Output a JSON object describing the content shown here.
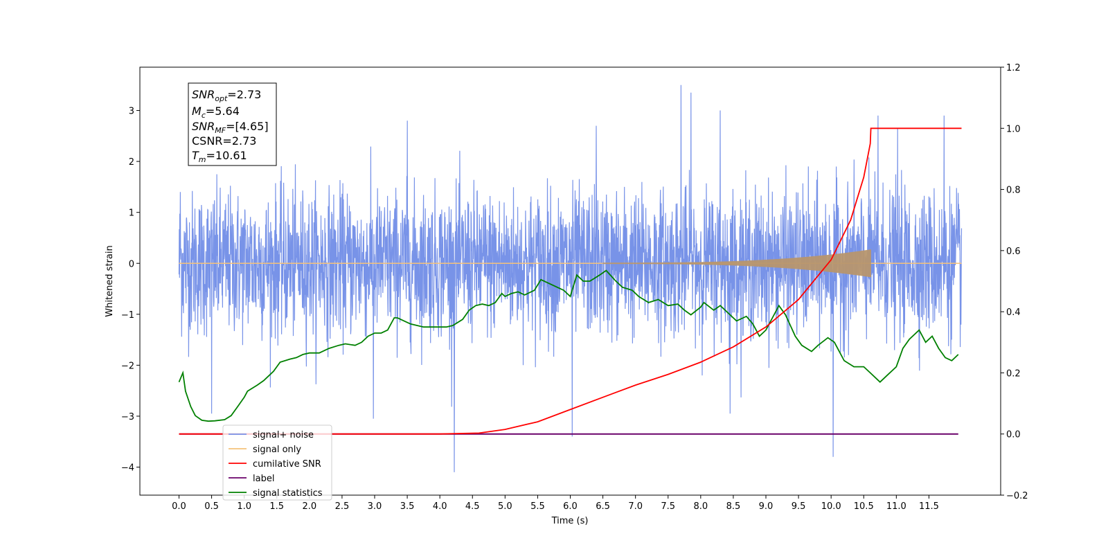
{
  "chart_data": {
    "type": "line",
    "xlabel": "Time (s)",
    "ylabel": "Whitened strain",
    "xlim": [
      -0.6,
      12.6
    ],
    "ylim": [
      -4.55,
      3.85
    ],
    "y2lim": [
      -0.2,
      1.2
    ],
    "x_ticks": [
      "0.0",
      "0.5",
      "1.0",
      "1.5",
      "2.0",
      "2.5",
      "3.0",
      "3.5",
      "4.0",
      "4.5",
      "5.0",
      "5.5",
      "6.0",
      "6.5",
      "7.0",
      "7.5",
      "8.0",
      "8.5",
      "9.0",
      "9.5",
      "10.0",
      "10.5",
      "11.0",
      "11.5"
    ],
    "y_ticks": [
      "−4",
      "−3",
      "−2",
      "−1",
      "0",
      "1",
      "2",
      "3"
    ],
    "y2_ticks": [
      "−0.2",
      "0.0",
      "0.2",
      "0.4",
      "0.6",
      "0.8",
      "1.0",
      "1.2"
    ],
    "legend_position": "lower-left",
    "annotation": {
      "snr_opt": "=2.73",
      "mc": "=5.64",
      "snr_mf": "=[4.65]",
      "csnr": "CSNR=2.73",
      "tm": "=10.61"
    },
    "series": [
      {
        "name": "signal+ noise",
        "axis": "left",
        "color": "#7893e8",
        "t_range": [
          0.0,
          12.0
        ],
        "amplitude_std": 0.7,
        "spikes": [
          [
            0.02,
            1.4
          ],
          [
            4.22,
            -4.1
          ],
          [
            6.03,
            -3.4
          ],
          [
            7.7,
            3.5
          ],
          [
            7.85,
            3.35
          ],
          [
            8.3,
            3.0
          ],
          [
            10.03,
            -3.8
          ],
          [
            10.72,
            2.9
          ],
          [
            11.73,
            2.9
          ],
          [
            11.02,
            2.65
          ],
          [
            3.5,
            2.8
          ],
          [
            6.4,
            2.7
          ],
          [
            2.98,
            -3.05
          ],
          [
            8.45,
            -2.95
          ],
          [
            0.5,
            -2.95
          ]
        ]
      },
      {
        "name": "signal only",
        "axis": "left",
        "color": "#f5c27a",
        "chirp_start": 6.5,
        "merger_time": 10.61,
        "peak_amplitude": 0.26
      },
      {
        "name": "cumilative SNR",
        "axis": "right",
        "color": "#ff0000",
        "x": [
          0.0,
          4.0,
          4.6,
          5.0,
          5.5,
          6.0,
          6.5,
          7.0,
          7.5,
          8.0,
          8.5,
          9.0,
          9.5,
          10.0,
          10.3,
          10.5,
          10.6,
          10.61,
          12.0
        ],
        "values": [
          0.0,
          0.0,
          0.003,
          0.015,
          0.04,
          0.08,
          0.12,
          0.16,
          0.195,
          0.235,
          0.285,
          0.35,
          0.44,
          0.57,
          0.7,
          0.84,
          0.95,
          1.0,
          1.0
        ]
      },
      {
        "name": "label",
        "axis": "right",
        "color": "#6a006a",
        "x": [
          0.0,
          11.95
        ],
        "values": [
          0.0,
          0.0
        ]
      },
      {
        "name": "signal statistics",
        "axis": "right",
        "color": "#008000",
        "x": [
          0.0,
          0.06,
          0.1,
          0.18,
          0.25,
          0.35,
          0.45,
          0.55,
          0.7,
          0.8,
          0.9,
          1.0,
          1.05,
          1.2,
          1.3,
          1.45,
          1.55,
          1.7,
          1.8,
          1.9,
          2.0,
          2.15,
          2.3,
          2.45,
          2.55,
          2.7,
          2.8,
          2.9,
          3.0,
          3.1,
          3.2,
          3.25,
          3.3,
          3.35,
          3.45,
          3.55,
          3.75,
          3.9,
          4.1,
          4.2,
          4.35,
          4.45,
          4.55,
          4.65,
          4.75,
          4.85,
          4.95,
          5.0,
          5.1,
          5.2,
          5.3,
          5.45,
          5.55,
          5.7,
          5.8,
          5.9,
          6.0,
          6.1,
          6.2,
          6.3,
          6.45,
          6.55,
          6.7,
          6.8,
          6.95,
          7.05,
          7.2,
          7.35,
          7.5,
          7.65,
          7.75,
          7.85,
          8.0,
          8.05,
          8.2,
          8.3,
          8.4,
          8.55,
          8.7,
          8.8,
          8.9,
          9.0,
          9.1,
          9.2,
          9.3,
          9.45,
          9.55,
          9.7,
          9.8,
          9.95,
          10.05,
          10.2,
          10.35,
          10.5,
          10.6,
          10.75,
          10.85,
          11.0,
          11.1,
          11.2,
          11.35,
          11.45,
          11.55,
          11.65,
          11.75,
          11.85,
          11.95
        ],
        "values": [
          0.17,
          0.2,
          0.14,
          0.09,
          0.06,
          0.045,
          0.042,
          0.043,
          0.047,
          0.06,
          0.09,
          0.12,
          0.14,
          0.16,
          0.175,
          0.205,
          0.235,
          0.245,
          0.25,
          0.26,
          0.265,
          0.265,
          0.28,
          0.29,
          0.295,
          0.29,
          0.3,
          0.32,
          0.33,
          0.33,
          0.34,
          0.36,
          0.38,
          0.38,
          0.37,
          0.36,
          0.35,
          0.35,
          0.35,
          0.355,
          0.375,
          0.405,
          0.42,
          0.425,
          0.42,
          0.43,
          0.46,
          0.45,
          0.46,
          0.465,
          0.455,
          0.47,
          0.505,
          0.49,
          0.48,
          0.47,
          0.45,
          0.52,
          0.5,
          0.5,
          0.52,
          0.535,
          0.5,
          0.48,
          0.47,
          0.45,
          0.43,
          0.44,
          0.42,
          0.425,
          0.405,
          0.39,
          0.415,
          0.43,
          0.405,
          0.42,
          0.4,
          0.37,
          0.385,
          0.36,
          0.32,
          0.34,
          0.38,
          0.42,
          0.39,
          0.32,
          0.29,
          0.27,
          0.29,
          0.315,
          0.3,
          0.24,
          0.22,
          0.22,
          0.2,
          0.17,
          0.19,
          0.22,
          0.28,
          0.31,
          0.34,
          0.3,
          0.32,
          0.28,
          0.25,
          0.24,
          0.26
        ]
      }
    ]
  }
}
